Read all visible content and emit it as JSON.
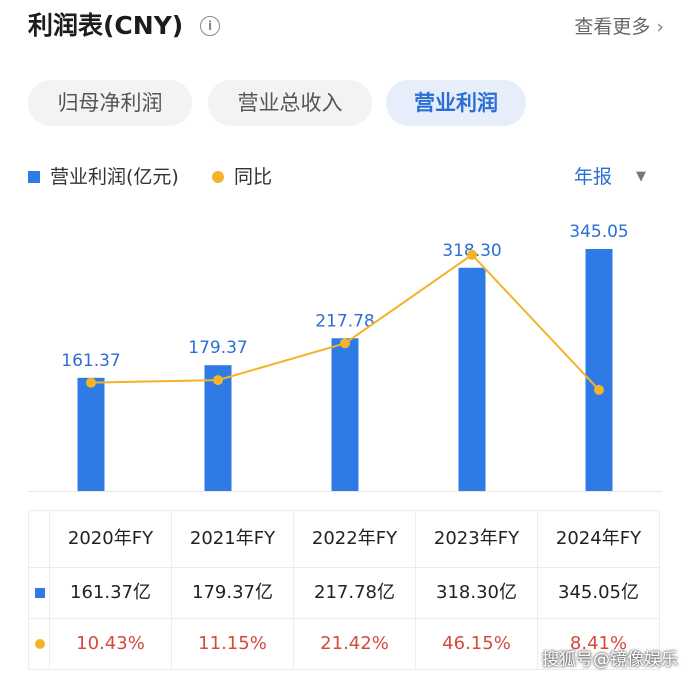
{
  "header": {
    "title": "利润表(CNY)",
    "info": "i",
    "more_label": "查看更多",
    "more_chevron": "›"
  },
  "tabs": [
    {
      "label": "归母净利润",
      "active": false
    },
    {
      "label": "营业总收入",
      "active": false
    },
    {
      "label": "营业利润",
      "active": true
    }
  ],
  "legend": {
    "bar_label": "营业利润(亿元)",
    "line_label": "同比"
  },
  "period": {
    "label": "年报",
    "caret": "▼"
  },
  "colors": {
    "bar": "#2f7be5",
    "line": "#f3b32a",
    "pct": "#d44a3d",
    "accent": "#2b6fd6"
  },
  "chart_data": {
    "type": "bar",
    "categories": [
      "2020年FY",
      "2021年FY",
      "2022年FY",
      "2023年FY",
      "2024年FY"
    ],
    "series": [
      {
        "name": "营业利润(亿元)",
        "type": "bar",
        "values": [
          161.37,
          179.37,
          217.78,
          318.3,
          345.05
        ],
        "labels": [
          "161.37",
          "179.37",
          "217.78",
          "318.30",
          "345.05"
        ]
      },
      {
        "name": "同比",
        "type": "line",
        "values": [
          10.43,
          11.15,
          21.42,
          46.15,
          8.41
        ]
      }
    ]
  },
  "table": {
    "headers": [
      "",
      "2020年FY",
      "2021年FY",
      "2022年FY",
      "2023年FY",
      "2024年FY"
    ],
    "rows": [
      {
        "marker": "bar-marker",
        "cells": [
          "161.37亿",
          "179.37亿",
          "217.78亿",
          "318.30亿",
          "345.05亿"
        ]
      },
      {
        "marker": "line-marker",
        "cells": [
          "10.43%",
          "11.15%",
          "21.42%",
          "46.15%",
          "8.41%"
        ]
      }
    ]
  },
  "watermark": "搜狐号@镜像娱乐"
}
